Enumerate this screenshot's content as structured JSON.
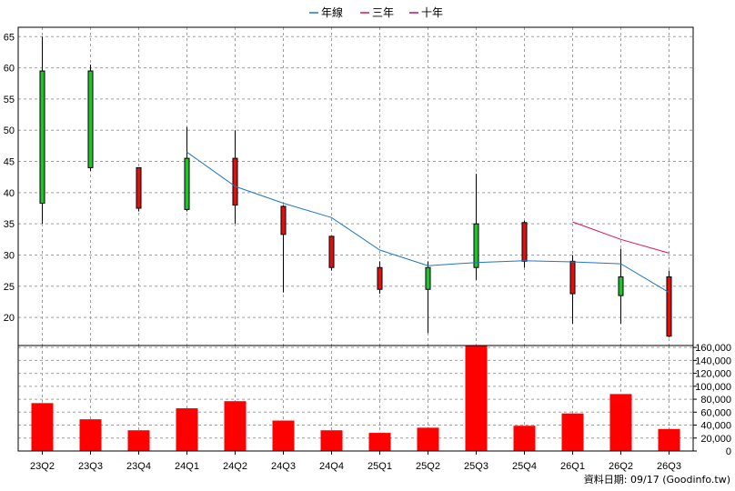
{
  "legend": [
    {
      "label": "年線",
      "color": "#1f77c8"
    },
    {
      "label": "三年",
      "color": "#e0105a"
    },
    {
      "label": "十年",
      "color": "#c0106a"
    }
  ],
  "source_note": "資料日期: 09/17  (Goodinfo.tw)",
  "colors": {
    "up": "#22c22e",
    "down": "#e01010",
    "volume": "#ff0000",
    "grid": "#a0a0a0",
    "frame": "#000000"
  },
  "chart_data": {
    "type": "candlestick",
    "categories": [
      "23Q2",
      "23Q3",
      "23Q4",
      "24Q1",
      "24Q2",
      "24Q3",
      "24Q4",
      "25Q1",
      "25Q2",
      "25Q3",
      "25Q4",
      "26Q1",
      "26Q2",
      "26Q3"
    ],
    "ohlc": [
      {
        "open": 38.3,
        "high": 65.0,
        "low": 35.0,
        "close": 59.5
      },
      {
        "open": 44.0,
        "high": 60.5,
        "low": 43.5,
        "close": 59.5
      },
      {
        "open": 44.0,
        "high": 44.0,
        "low": 37.0,
        "close": 37.5
      },
      {
        "open": 37.3,
        "high": 50.5,
        "low": 37.0,
        "close": 45.5
      },
      {
        "open": 45.5,
        "high": 50.0,
        "low": 35.0,
        "close": 38.0
      },
      {
        "open": 37.8,
        "high": 38.0,
        "low": 24.0,
        "close": 33.3
      },
      {
        "open": 33.0,
        "high": 33.0,
        "low": 27.5,
        "close": 28.0
      },
      {
        "open": 28.0,
        "high": 29.0,
        "low": 23.8,
        "close": 24.5
      },
      {
        "open": 24.5,
        "high": 29.0,
        "low": 17.5,
        "close": 28.0
      },
      {
        "open": 28.0,
        "high": 43.0,
        "low": 26.0,
        "close": 35.0
      },
      {
        "open": 35.2,
        "high": 35.5,
        "low": 28.0,
        "close": 29.0
      },
      {
        "open": 29.0,
        "high": 30.0,
        "low": 19.0,
        "close": 23.8
      },
      {
        "open": 23.5,
        "high": 31.0,
        "low": 19.0,
        "close": 26.5
      },
      {
        "open": 26.5,
        "high": 27.5,
        "low": 16.8,
        "close": 17.0
      }
    ],
    "ma_series": [
      {
        "name": "年線",
        "start_index": 3,
        "values": [
          46.5,
          41.0,
          38.3,
          36.0,
          30.8,
          28.3,
          28.8,
          29.1,
          28.9,
          28.6,
          24.0
        ]
      },
      {
        "name": "三年",
        "start_index": 11,
        "values": [
          35.3,
          32.5,
          30.3
        ]
      }
    ],
    "volume": [
      74000,
      49000,
      32000,
      66000,
      77000,
      47000,
      32000,
      28000,
      36000,
      163000,
      39000,
      58000,
      88000,
      34000
    ],
    "price_axis": {
      "min": 15.5,
      "max": 66.5,
      "ticks": [
        65,
        60,
        55,
        50,
        45,
        40,
        35,
        30,
        25,
        20
      ]
    },
    "volume_axis": {
      "min": 0,
      "max": 163000,
      "ticks": [
        160000,
        140000,
        120000,
        100000,
        80000,
        60000,
        40000,
        20000,
        0
      ],
      "tick_labels": [
        "160,000",
        "140,000",
        "120,000",
        "100,000",
        "80,000",
        "60,000",
        "40,000",
        "20,000",
        "0"
      ]
    },
    "grid": true,
    "legend_position": "top-center"
  }
}
